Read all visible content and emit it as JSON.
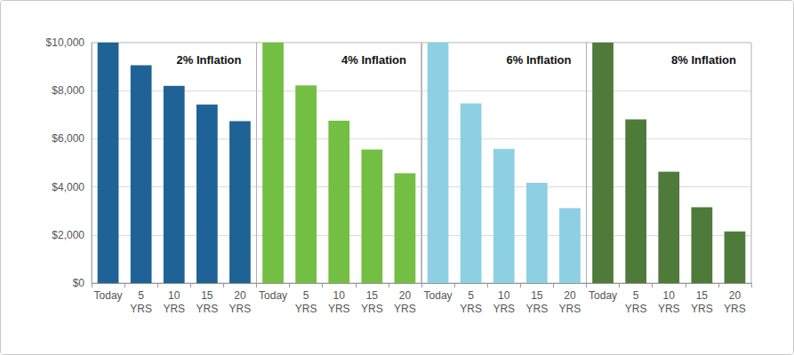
{
  "chart_data": [
    {
      "type": "bar",
      "title": "2% Inflation",
      "categories": [
        "Today",
        "5 YRS",
        "10 YRS",
        "15 YRS",
        "20 YRS"
      ],
      "values": [
        10000,
        9057,
        8203,
        7430,
        6730
      ],
      "color": "#1f6396",
      "ylim": [
        0,
        10000
      ],
      "yticks": [
        {
          "value": 0,
          "label": "$0"
        },
        {
          "value": 2000,
          "label": "$2,000"
        },
        {
          "value": 4000,
          "label": "$4,000"
        },
        {
          "value": 6000,
          "label": "$6,000"
        },
        {
          "value": 8000,
          "label": "$8,000"
        },
        {
          "value": 10000,
          "label": "$10,000"
        }
      ],
      "grid": true
    },
    {
      "type": "bar",
      "title": "4% Inflation",
      "categories": [
        "Today",
        "5 YRS",
        "10 YRS",
        "15 YRS",
        "20 YRS"
      ],
      "values": [
        10000,
        8219,
        6756,
        5553,
        4564
      ],
      "color": "#72bf44",
      "ylim": [
        0,
        10000
      ],
      "yticks": [
        {
          "value": 0,
          "label": "$0"
        },
        {
          "value": 2000,
          "label": "$2,000"
        },
        {
          "value": 4000,
          "label": "$4,000"
        },
        {
          "value": 6000,
          "label": "$6,000"
        },
        {
          "value": 8000,
          "label": "$8,000"
        },
        {
          "value": 10000,
          "label": "$10,000"
        }
      ],
      "grid": true,
      "tick_labels": "x"
    },
    {
      "type": "bar",
      "title": "6% Inflation",
      "categories": [
        "Today",
        "5 YRS",
        "10 YRS",
        "15 YRS",
        "20 YRS"
      ],
      "values": [
        10000,
        7473,
        5584,
        4173,
        3118
      ],
      "color": "#8dd0e4",
      "ylim": [
        0,
        10000
      ],
      "yticks": [
        {
          "value": 0,
          "label": "$0"
        },
        {
          "value": 2000,
          "label": "$2,000"
        },
        {
          "value": 4000,
          "label": "$4,000"
        },
        {
          "value": 6000,
          "label": "$6,000"
        },
        {
          "value": 8000,
          "label": "$8,000"
        },
        {
          "value": 10000,
          "label": "$10,000"
        }
      ],
      "grid": true,
      "tick_labels": "x"
    },
    {
      "type": "bar",
      "title": "8% Inflation",
      "categories": [
        "Today",
        "5 YRS",
        "10 YRS",
        "15 YRS",
        "20 YRS"
      ],
      "values": [
        10000,
        6806,
        4632,
        3152,
        2145
      ],
      "color": "#4e7b3a",
      "ylim": [
        0,
        10000
      ],
      "yticks": [
        {
          "value": 0,
          "label": "$0"
        },
        {
          "value": 2000,
          "label": "$2,000"
        },
        {
          "value": 4000,
          "label": "$4,000"
        },
        {
          "value": 6000,
          "label": "$6,000"
        },
        {
          "value": 8000,
          "label": "$8,000"
        },
        {
          "value": 10000,
          "label": "$10,000"
        }
      ],
      "grid": true,
      "tick_labels": "x"
    }
  ]
}
